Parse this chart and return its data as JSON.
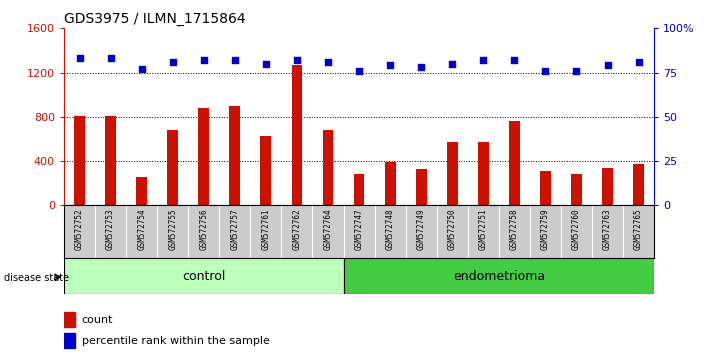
{
  "title": "GDS3975 / ILMN_1715864",
  "samples": [
    "GSM572752",
    "GSM572753",
    "GSM572754",
    "GSM572755",
    "GSM572756",
    "GSM572757",
    "GSM572761",
    "GSM572762",
    "GSM572764",
    "GSM572747",
    "GSM572748",
    "GSM572749",
    "GSM572750",
    "GSM572751",
    "GSM572758",
    "GSM572759",
    "GSM572760",
    "GSM572763",
    "GSM572765"
  ],
  "counts": [
    810,
    810,
    260,
    680,
    880,
    900,
    630,
    1270,
    680,
    280,
    390,
    330,
    570,
    570,
    760,
    310,
    280,
    340,
    370
  ],
  "percentiles": [
    83,
    83,
    77,
    81,
    82,
    82,
    80,
    82,
    81,
    76,
    79,
    78,
    80,
    82,
    82,
    76,
    76,
    79,
    81
  ],
  "groups": [
    "control",
    "control",
    "control",
    "control",
    "control",
    "control",
    "control",
    "control",
    "control",
    "endometrioma",
    "endometrioma",
    "endometrioma",
    "endometrioma",
    "endometrioma",
    "endometrioma",
    "endometrioma",
    "endometrioma",
    "endometrioma",
    "endometrioma"
  ],
  "n_control": 9,
  "n_endo": 10,
  "ylim_left": [
    0,
    1600
  ],
  "ylim_right": [
    0,
    100
  ],
  "yticks_left": [
    0,
    400,
    800,
    1200,
    1600
  ],
  "yticks_right": [
    0,
    25,
    50,
    75,
    100
  ],
  "bar_color": "#cc1100",
  "dot_color": "#0000cc",
  "control_color": "#bbffbb",
  "endometrioma_color": "#44cc44",
  "sample_bg_color": "#cccccc",
  "grid_color": "#000000",
  "bar_width": 0.35
}
